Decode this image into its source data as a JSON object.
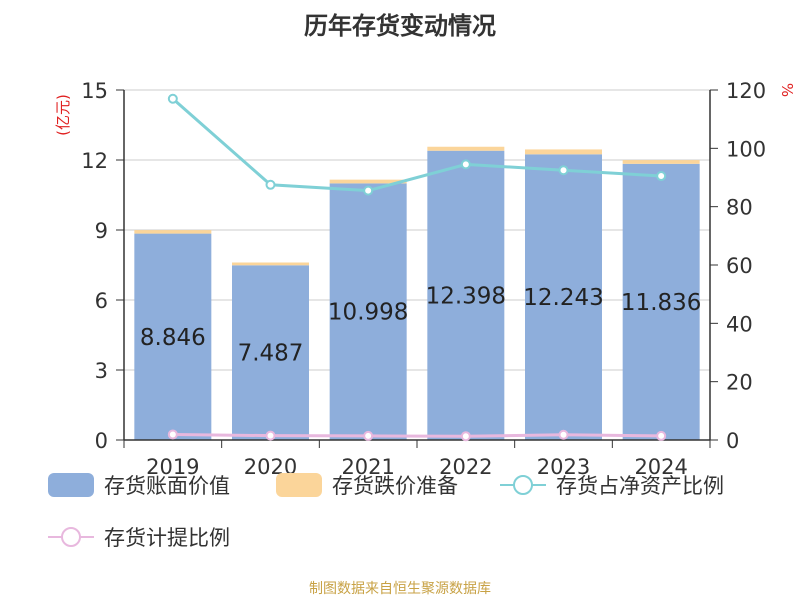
{
  "title": "历年存货变动情况",
  "source": "制图数据来自恒生聚源数据库",
  "colors": {
    "bar_book": "#8eaedb",
    "bar_reserve": "#fbd59a",
    "line_ratio": "#7fd0d6",
    "line_provision": "#e8b8de",
    "axis_unit_left": "#e02020",
    "axis_unit_right": "#e02020"
  },
  "legend": [
    {
      "label": "存货账面价值",
      "type": "box",
      "color": "#8eaedb"
    },
    {
      "label": "存货跌价准备",
      "type": "box",
      "color": "#fbd59a"
    },
    {
      "label": "存货占净资产比例",
      "type": "line",
      "color": "#7fd0d6"
    },
    {
      "label": "存货计提比例",
      "type": "line",
      "color": "#e8b8de"
    }
  ],
  "chart_data": {
    "type": "bar",
    "title": "历年存货变动情况",
    "categories": [
      "2019",
      "2020",
      "2021",
      "2022",
      "2023",
      "2024"
    ],
    "y_left": {
      "unit": "(亿元)",
      "ticks": [
        0,
        3,
        6,
        9,
        12,
        15
      ],
      "ylim": [
        0,
        15
      ]
    },
    "y_right": {
      "unit": "%",
      "ticks": [
        0,
        20,
        40,
        60,
        80,
        100,
        120
      ],
      "ylim": [
        0,
        120
      ]
    },
    "grid": true,
    "legend_position": "bottom",
    "series": [
      {
        "name": "存货账面价值",
        "type": "bar",
        "axis": "left",
        "stack": "total",
        "values": [
          8.846,
          7.487,
          10.998,
          12.398,
          12.243,
          11.836
        ],
        "labels": [
          "8.846",
          "7.487",
          "10.998",
          "12.398",
          "12.243",
          "11.836"
        ]
      },
      {
        "name": "存货跌价准备",
        "type": "bar",
        "axis": "left",
        "stack": "total",
        "values": [
          0.15,
          0.12,
          0.16,
          0.17,
          0.21,
          0.16
        ]
      },
      {
        "name": "存货占净资产比例",
        "type": "line",
        "axis": "right",
        "values": [
          117,
          87.5,
          85.5,
          94.5,
          92.5,
          90.5
        ]
      },
      {
        "name": "存货计提比例",
        "type": "line",
        "axis": "right",
        "values": [
          1.9,
          1.5,
          1.4,
          1.3,
          1.8,
          1.4
        ]
      }
    ]
  }
}
